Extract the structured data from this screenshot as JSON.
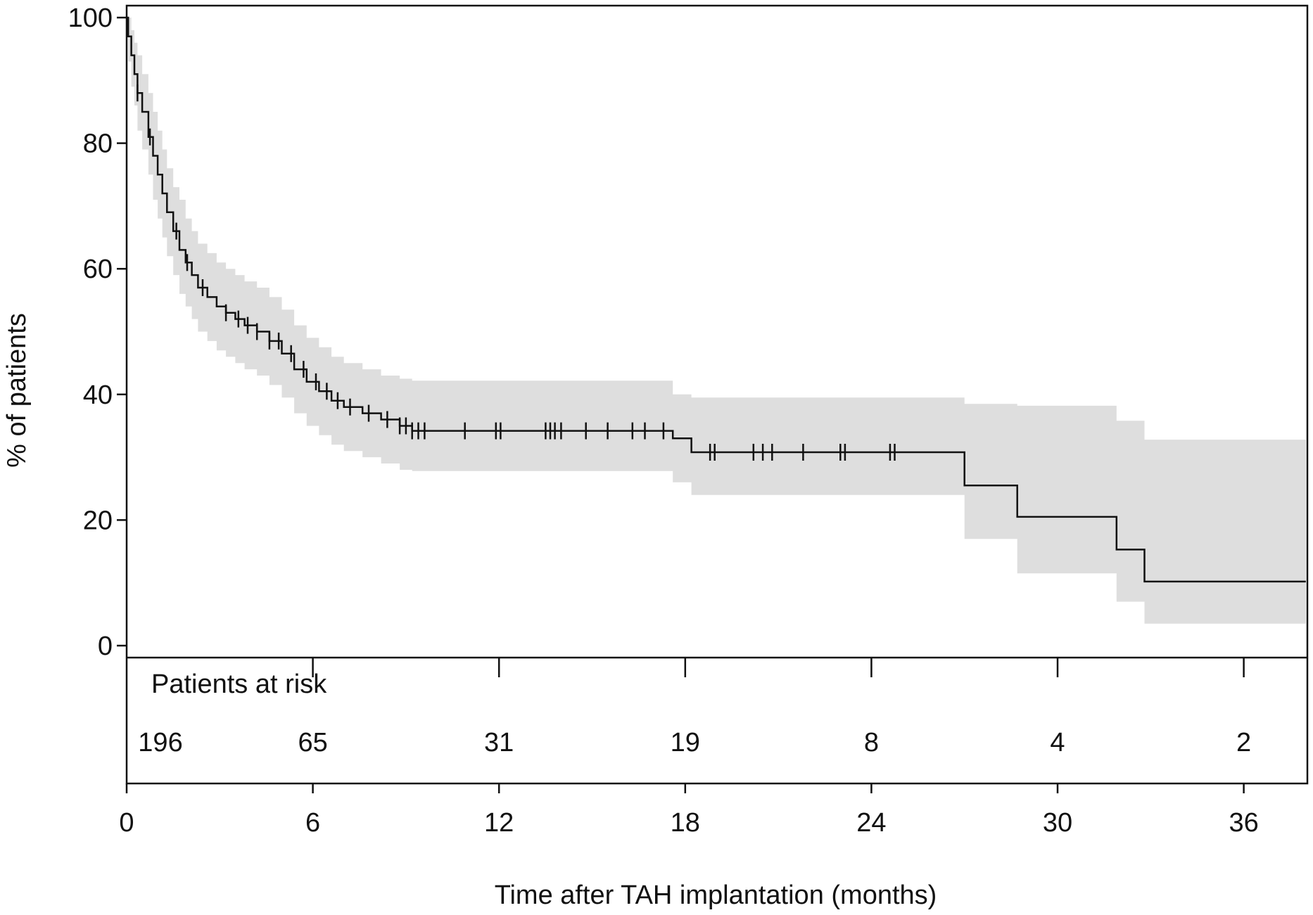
{
  "chart_data": {
    "type": "line",
    "subtype": "kaplan-meier-survival",
    "title": "",
    "xlabel": "Time after TAH implantation (months)",
    "ylabel": "% of patients",
    "xlim": [
      0,
      38
    ],
    "ylim": [
      0,
      100
    ],
    "x_ticks": [
      0,
      6,
      12,
      18,
      24,
      30,
      36
    ],
    "y_ticks": [
      0,
      20,
      40,
      60,
      80,
      100
    ],
    "grid": false,
    "colors": {
      "survival_line": "#111111",
      "confidence_band": "#dedede",
      "axis": "#111111"
    },
    "series": [
      {
        "name": "",
        "style": "step",
        "x": [
          0,
          0.05,
          0.15,
          0.25,
          0.35,
          0.5,
          0.7,
          0.85,
          1.0,
          1.15,
          1.3,
          1.5,
          1.7,
          1.9,
          2.1,
          2.3,
          2.6,
          2.9,
          3.2,
          3.5,
          3.8,
          4.2,
          4.6,
          5.0,
          5.4,
          5.8,
          6.2,
          6.6,
          7.0,
          7.6,
          8.2,
          8.8,
          9.2,
          17.6,
          18.2,
          27.0,
          28.7,
          31.9,
          32.8,
          38
        ],
        "y": [
          100,
          97,
          94,
          91,
          88,
          85,
          81,
          78,
          75,
          72,
          69,
          66,
          63,
          61,
          59,
          57,
          55.5,
          54,
          53,
          52,
          51,
          50,
          48.5,
          46.5,
          44,
          42,
          40.5,
          39,
          38,
          37,
          36,
          35,
          34.2,
          33,
          30.8,
          25.5,
          20.5,
          15.3,
          10.2,
          10.2
        ],
        "ci_lower": [
          100,
          93,
          89,
          86,
          82,
          79,
          75,
          71,
          68,
          65,
          62,
          59,
          56,
          54,
          52,
          50,
          48.5,
          47,
          46,
          45,
          44,
          43,
          41.5,
          39.5,
          37,
          35,
          33.5,
          32,
          31,
          30,
          29,
          28,
          27.8,
          26,
          24,
          17,
          11.5,
          7,
          3.5,
          3.5
        ],
        "ci_upper": [
          100,
          100,
          98,
          96,
          94,
          91,
          88,
          85,
          82,
          79,
          76,
          73,
          71,
          68,
          66,
          64,
          62.5,
          61,
          60,
          59,
          58,
          57,
          55.5,
          53.5,
          51,
          49,
          47.5,
          46,
          45,
          44,
          43,
          42.5,
          42.2,
          40,
          39.5,
          38.5,
          38.2,
          35.8,
          32.8,
          32.8
        ],
        "censored": [
          0.35,
          0.75,
          1.6,
          1.95,
          2.45,
          3.2,
          3.6,
          3.9,
          4.2,
          4.6,
          4.9,
          5.3,
          5.7,
          6.1,
          6.45,
          6.8,
          7.2,
          7.8,
          8.4,
          8.8,
          9.0,
          9.2,
          9.4,
          9.6,
          10.9,
          11.9,
          12.05,
          13.5,
          13.65,
          13.8,
          14.0,
          14.8,
          15.5,
          16.3,
          16.7,
          17.3,
          18.8,
          18.95,
          20.2,
          20.5,
          20.8,
          21.8,
          23.0,
          23.15,
          24.6,
          24.75
        ]
      }
    ],
    "risk_table": {
      "title": "Patients at risk",
      "times": [
        0,
        6,
        12,
        18,
        24,
        30,
        36
      ],
      "counts": [
        "196",
        "65",
        "31",
        "19",
        "8",
        "4",
        "2"
      ]
    }
  }
}
